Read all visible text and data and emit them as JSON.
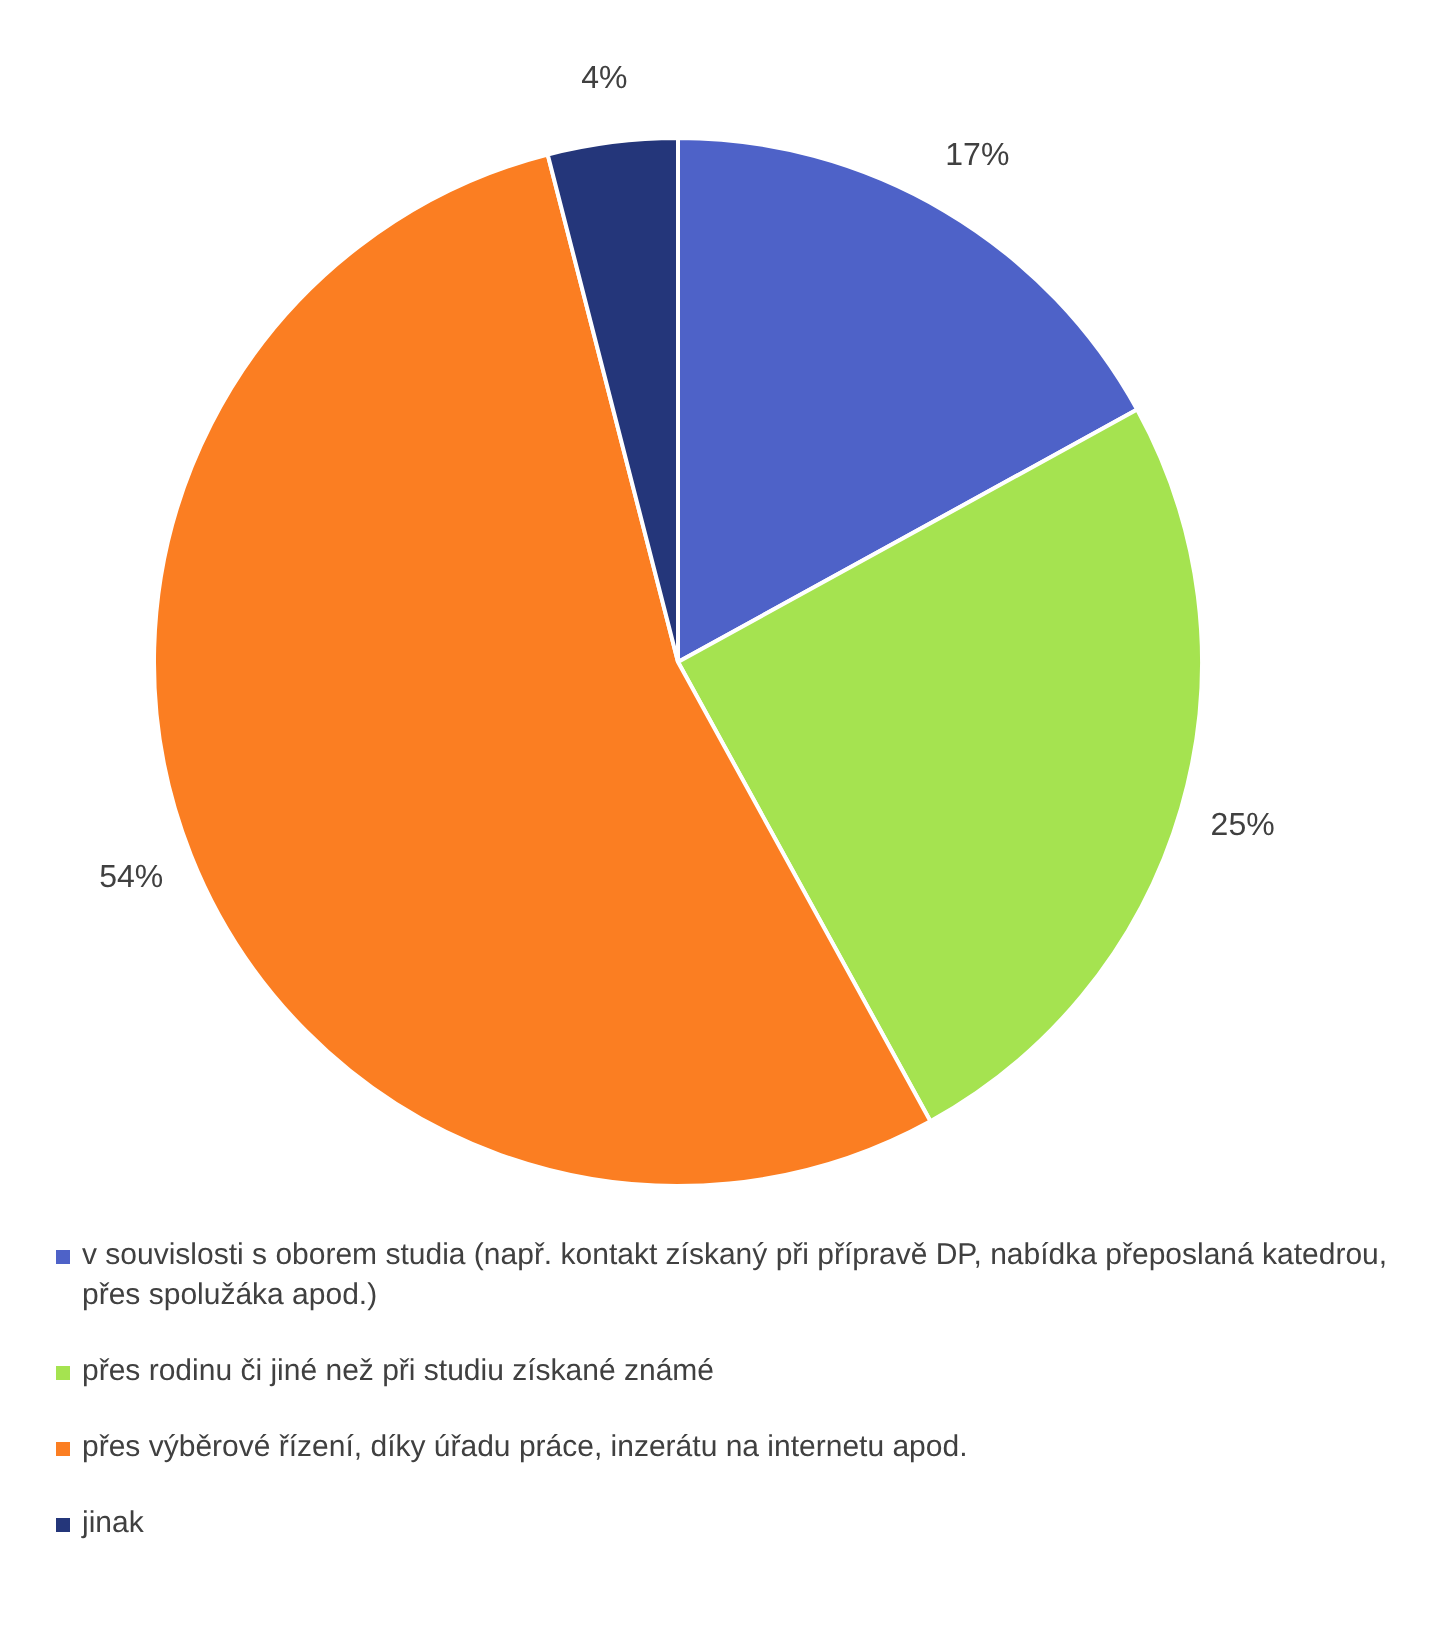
{
  "chart_data": {
    "type": "pie",
    "categories": [
      "v souvislosti s oborem studia (např. kontakt získaný při přípravě DP, nabídka přeposlaná katedrou, přes spolužáka apod.)",
      "přes rodinu či jiné než při studiu získané známé",
      "přes výběrové řízení, díky úřadu práce, inzerátu na internetu apod.",
      "jinak"
    ],
    "values": [
      17,
      25,
      54,
      4
    ],
    "value_labels": [
      "17%",
      "25%",
      "54%",
      "4%"
    ],
    "colors": [
      "#4e62c8",
      "#a5e350",
      "#fb7e22",
      "#24367a"
    ],
    "legend": "bottom"
  }
}
